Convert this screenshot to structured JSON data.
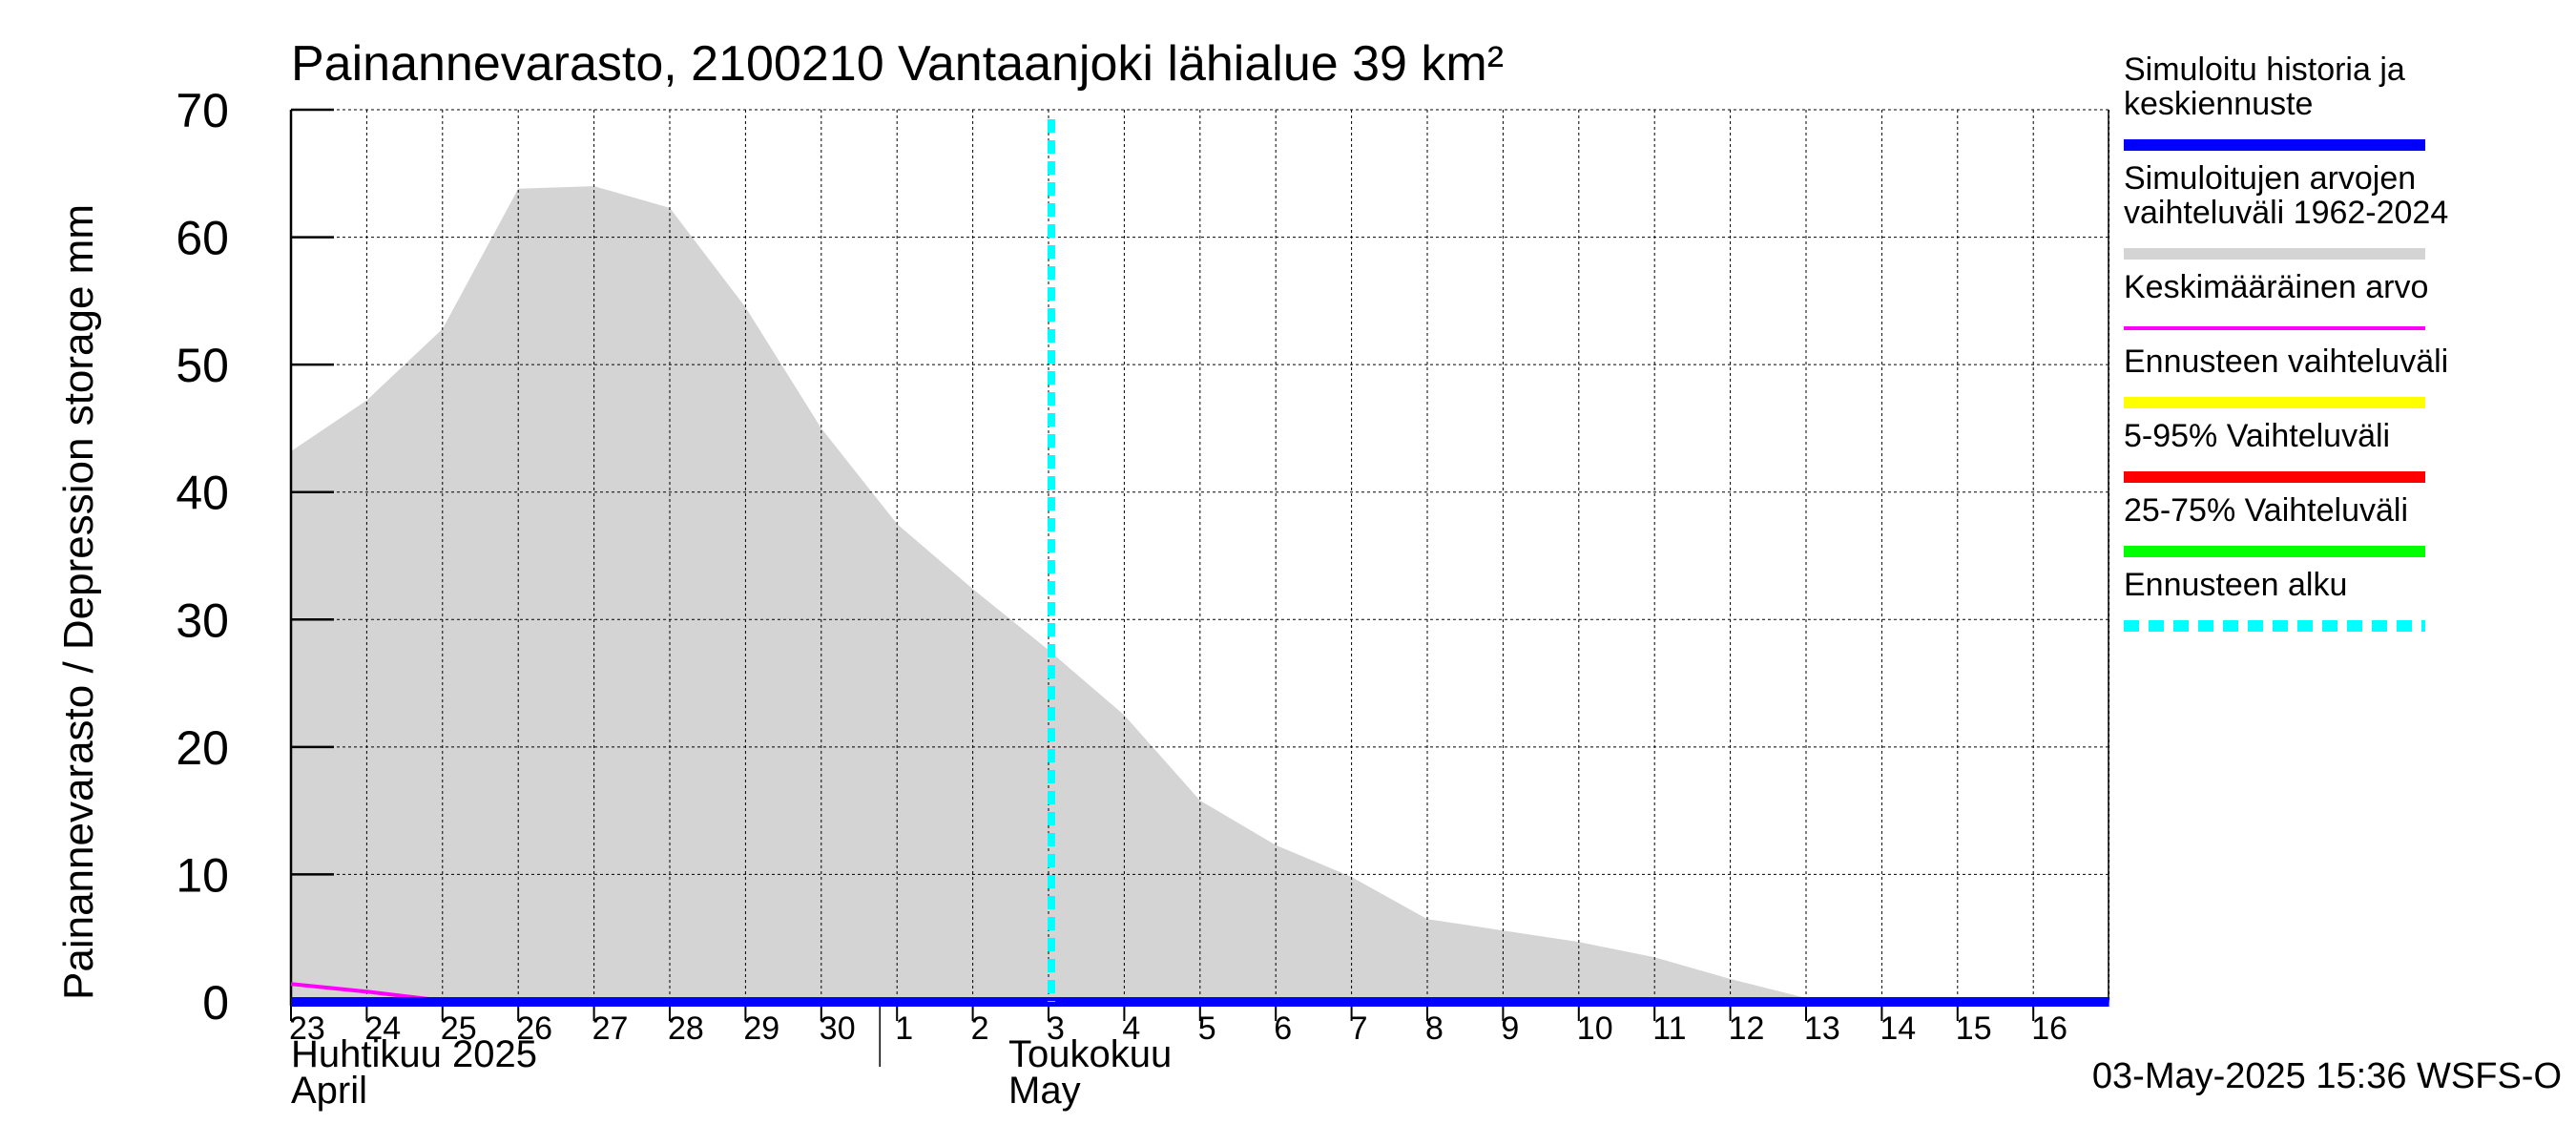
{
  "chart_data": {
    "type": "area",
    "title": "Painannevarasto, 2100210 Vantaanjoki lähialue 39 km²",
    "ylabel": "Painannevarasto / Depression storage    mm",
    "ylim": [
      0,
      70
    ],
    "yticks": [
      "0",
      "10",
      "20",
      "30",
      "40",
      "50",
      "60",
      "70"
    ],
    "grid": true,
    "legend_placement": "right",
    "x_day_labels": [
      "23",
      "24",
      "25",
      "26",
      "27",
      "28",
      "29",
      "30",
      "1",
      "2",
      "3",
      "4",
      "5",
      "6",
      "7",
      "8",
      "9",
      "10",
      "11",
      "12",
      "13",
      "14",
      "15",
      "16"
    ],
    "month_labels": [
      {
        "fi": "Huhtikuu  2025",
        "en": "April"
      },
      {
        "fi": "Toukokuu",
        "en": "May"
      }
    ],
    "forecast_start": "2025-05-03",
    "series": [
      {
        "name": "Simuloitujen arvojen vaihteluväli 1962-2024",
        "color": "#d4d4d4",
        "kind": "range",
        "x": [
          "2025-04-23",
          "2025-04-24",
          "2025-04-25",
          "2025-04-26",
          "2025-04-27",
          "2025-04-28",
          "2025-04-29",
          "2025-04-30",
          "2025-05-01",
          "2025-05-02",
          "2025-05-03",
          "2025-05-04",
          "2025-05-05",
          "2025-05-06",
          "2025-05-07",
          "2025-05-08",
          "2025-05-09",
          "2025-05-10",
          "2025-05-11",
          "2025-05-12",
          "2025-05-13",
          "2025-05-14",
          "2025-05-15",
          "2025-05-16",
          "2025-05-17"
        ],
        "upper": [
          43.2,
          47.2,
          52.8,
          63.8,
          64.0,
          62.3,
          54.5,
          45.0,
          37.5,
          32.4,
          27.6,
          22.5,
          15.8,
          12.3,
          9.8,
          6.5,
          5.6,
          4.7,
          3.5,
          1.8,
          0.3,
          0.3,
          0.3,
          0.3,
          0.3
        ],
        "lower": [
          0,
          0,
          0,
          0,
          0,
          0,
          0,
          0,
          0,
          0,
          0,
          0,
          0,
          0,
          0,
          0,
          0,
          0,
          0,
          0,
          0,
          0,
          0,
          0,
          0
        ]
      },
      {
        "name": "Keskimääräinen arvo",
        "color": "#ff00ff",
        "x": [
          "2025-04-23",
          "2025-04-24",
          "2025-04-25",
          "2025-04-26",
          "2025-04-27",
          "2025-05-17"
        ],
        "values": [
          1.4,
          0.8,
          0.1,
          0.0,
          0.0,
          0.0
        ]
      },
      {
        "name": "Simuloitu historia ja keskiennuste",
        "color": "#0000ff",
        "x": [
          "2025-04-23",
          "2025-04-24",
          "2025-04-25",
          "2025-04-26",
          "2025-05-17"
        ],
        "values": [
          0.0,
          0.0,
          0.0,
          0.0,
          0.0
        ]
      }
    ],
    "legend": [
      {
        "label": [
          "Simuloitu historia ja",
          "keskiennuste"
        ],
        "color": "#0000ff",
        "style": "solid"
      },
      {
        "label": [
          "Simuloitujen arvojen",
          "vaihteluväli 1962-2024"
        ],
        "color": "#d4d4d4",
        "style": "solid"
      },
      {
        "label": [
          "Keskimääräinen arvo"
        ],
        "color": "#ff00ff",
        "style": "thin"
      },
      {
        "label": [
          "Ennusteen vaihteluväli"
        ],
        "color": "#ffff00",
        "style": "solid"
      },
      {
        "label": [
          "5-95% Vaihteluväli"
        ],
        "color": "#ff0000",
        "style": "solid"
      },
      {
        "label": [
          "25-75% Vaihteluväli"
        ],
        "color": "#00ff00",
        "style": "solid"
      },
      {
        "label": [
          "Ennusteen alku"
        ],
        "color": "#00ffff",
        "style": "dashed"
      }
    ],
    "footer": "03-May-2025 15:36 WSFS-O"
  }
}
